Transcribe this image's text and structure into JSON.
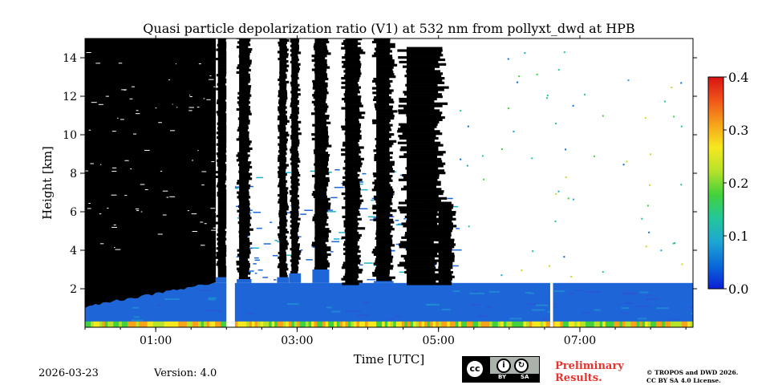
{
  "chart_data": {
    "type": "heatmap",
    "title": "Quasi particle depolarization ratio (V1) at 532 nm from pollyxt_dwd at HPB",
    "xlabel": "Time [UTC]",
    "ylabel": "Height [km]",
    "x_range_hours": [
      0.0,
      8.6
    ],
    "ylim": [
      0,
      15
    ],
    "x_ticks": [
      {
        "value": 1,
        "label": "01:00"
      },
      {
        "value": 3,
        "label": "03:00"
      },
      {
        "value": 5,
        "label": "05:00"
      },
      {
        "value": 7,
        "label": "07:00"
      }
    ],
    "y_ticks": [
      {
        "value": 2,
        "label": "2"
      },
      {
        "value": 4,
        "label": "4"
      },
      {
        "value": 6,
        "label": "6"
      },
      {
        "value": 8,
        "label": "8"
      },
      {
        "value": 10,
        "label": "10"
      },
      {
        "value": 12,
        "label": "12"
      },
      {
        "value": 14,
        "label": "14"
      }
    ],
    "colorbar": {
      "range": [
        0.0,
        0.4
      ],
      "ticks": [
        {
          "value": 0.0,
          "label": "0.0"
        },
        {
          "value": 0.1,
          "label": "0.1"
        },
        {
          "value": 0.2,
          "label": "0.2"
        },
        {
          "value": 0.3,
          "label": "0.3"
        },
        {
          "value": 0.4,
          "label": "0.4"
        }
      ],
      "colormap": [
        "#0b1fd6",
        "#0a6ad8",
        "#1ea6d2",
        "#22c79a",
        "#43d13c",
        "#b6e22a",
        "#f6e81f",
        "#f6a21b",
        "#f0561a",
        "#d81313"
      ]
    },
    "colors": {
      "cloud_mask": "#000000",
      "boundary_layer": "#1e66d8",
      "no_data": "#ffffff"
    },
    "features": {
      "data_gaps_hours": [
        [
          2.0,
          2.12
        ],
        [
          6.58,
          6.62
        ]
      ],
      "dense_cloud_until_hours": 1.85,
      "cloud_columns_hours": [
        {
          "start": 1.88,
          "end": 2.0,
          "top_km": 15,
          "bottom_km": 2.6
        },
        {
          "start": 2.18,
          "end": 2.32,
          "top_km": 15,
          "bottom_km": 2.5
        },
        {
          "start": 2.75,
          "end": 2.85,
          "top_km": 15,
          "bottom_km": 2.6
        },
        {
          "start": 2.92,
          "end": 3.02,
          "top_km": 15,
          "bottom_km": 2.8
        },
        {
          "start": 3.25,
          "end": 3.42,
          "top_km": 15,
          "bottom_km": 3.0
        },
        {
          "start": 3.68,
          "end": 3.88,
          "top_km": 15,
          "bottom_km": 2.2
        },
        {
          "start": 4.12,
          "end": 4.33,
          "top_km": 15,
          "bottom_km": 2.4
        },
        {
          "start": 4.55,
          "end": 5.0,
          "top_km": 14.5,
          "bottom_km": 2.2
        },
        {
          "start": 5.0,
          "end": 5.2,
          "top_km": 6.5,
          "bottom_km": 2.2
        }
      ],
      "boundary_layer_top_km": 2.3,
      "surface_layer_top_km": 0.3
    }
  },
  "footer": {
    "date": "2026-03-23",
    "version": "Version: 4.0",
    "preliminary_line1": "Preliminary",
    "preliminary_line2": "Results.",
    "copyright_line1": "© TROPOS and DWD 2026.",
    "copyright_line2": "CC BY SA 4.0 License.",
    "cc_badge": {
      "main": "cc",
      "by": "BY",
      "sa": "SA",
      "by_icon": "person-icon",
      "sa_icon": "share-alike-icon"
    }
  }
}
